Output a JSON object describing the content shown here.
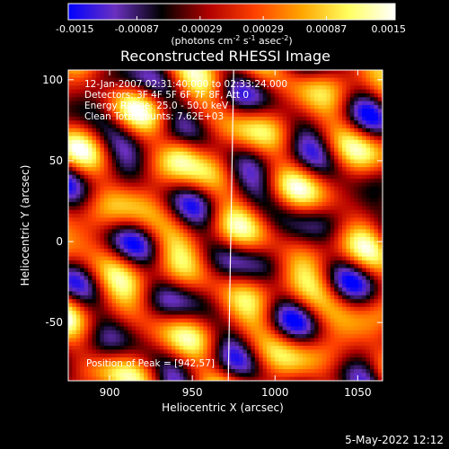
{
  "chart_data": {
    "type": "heatmap",
    "title": "Reconstructed RHESSI Image",
    "xlabel": "Heliocentric X (arcsec)",
    "ylabel": "Heliocentric Y (arcsec)",
    "xlim": [
      875,
      1065
    ],
    "ylim": [
      -86,
      106
    ],
    "xticks": [
      900,
      950,
      1000,
      1050
    ],
    "yticks": [
      -50,
      0,
      50,
      100
    ],
    "colorbar": {
      "range": [
        -0.0015,
        0.0015
      ],
      "tick_labels": [
        "-0.0015",
        "-0.00087",
        "-0.00029",
        "0.00029",
        "0.00087",
        "0.0015"
      ],
      "unit_label_parts": [
        "(photons cm",
        "-2",
        " s",
        "-1",
        " asec",
        "-2",
        ")"
      ],
      "colormap": [
        "#0000ff",
        "#6a30c0",
        "#000000",
        "#b00000",
        "#ff4000",
        "#ffa500",
        "#ffff60",
        "#ffffff"
      ]
    },
    "info_lines": [
      "12-Jan-2007 02:31:40.000 to 02:33:24.000",
      "Detectors: 3F 4F 5F 6F 7F 8F, Att 0",
      "Energy Range: 25.0 - 50.0 keV",
      "Clean     Total counts: 7.62E+03"
    ],
    "peak_label": "Position of Peak = [942,57]",
    "peak": [
      942,
      57
    ],
    "limb_x": 975,
    "footer_date": "5-May-2022 12:12"
  }
}
